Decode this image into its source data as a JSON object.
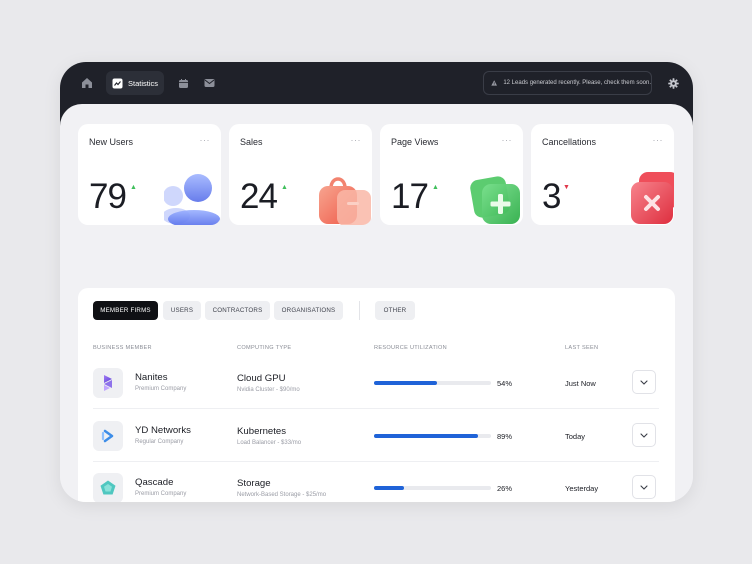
{
  "topbar": {
    "active_tab_label": "Statistics",
    "notice_text": "12 Leads generated recently. Please, check them soon."
  },
  "cards": [
    {
      "title": "New Users",
      "value": "79",
      "trend": "up",
      "color": "#5b73f0"
    },
    {
      "title": "Sales",
      "value": "24",
      "trend": "up",
      "color": "#f2705f"
    },
    {
      "title": "Page Views",
      "value": "17",
      "trend": "up",
      "color": "#3fbf5b"
    },
    {
      "title": "Cancellations",
      "value": "3",
      "trend": "down",
      "color": "#e64552"
    }
  ],
  "tabs": [
    "MEMBER FIRMS",
    "USERS",
    "CONTRACTORS",
    "ORGANISATIONS",
    "OTHER"
  ],
  "columns": [
    "BUSINESS MEMBER",
    "COMPUTING TYPE",
    "RESOURCE UTILIZATION",
    "LAST SEEN"
  ],
  "rows": [
    {
      "name": "Nanites",
      "tier": "Premium Company",
      "compute": "Cloud GPU",
      "compute_sub": "Nvidia Cluster - $90/mo",
      "utilization": 54,
      "utilization_label": "54%",
      "last_seen": "Just Now",
      "logo_icon": "nanites-logo-icon"
    },
    {
      "name": "YD Networks",
      "tier": "Regular Company",
      "compute": "Kubernetes",
      "compute_sub": "Load Balancer - $33/mo",
      "utilization": 89,
      "utilization_label": "89%",
      "last_seen": "Today",
      "logo_icon": "yd-networks-logo-icon"
    },
    {
      "name": "Qascade",
      "tier": "Premium Company",
      "compute": "Storage",
      "compute_sub": "Network-Based Storage - $25/mo",
      "utilization": 26,
      "utilization_label": "26%",
      "last_seen": "Yesterday",
      "logo_icon": "qascade-logo-icon"
    }
  ]
}
